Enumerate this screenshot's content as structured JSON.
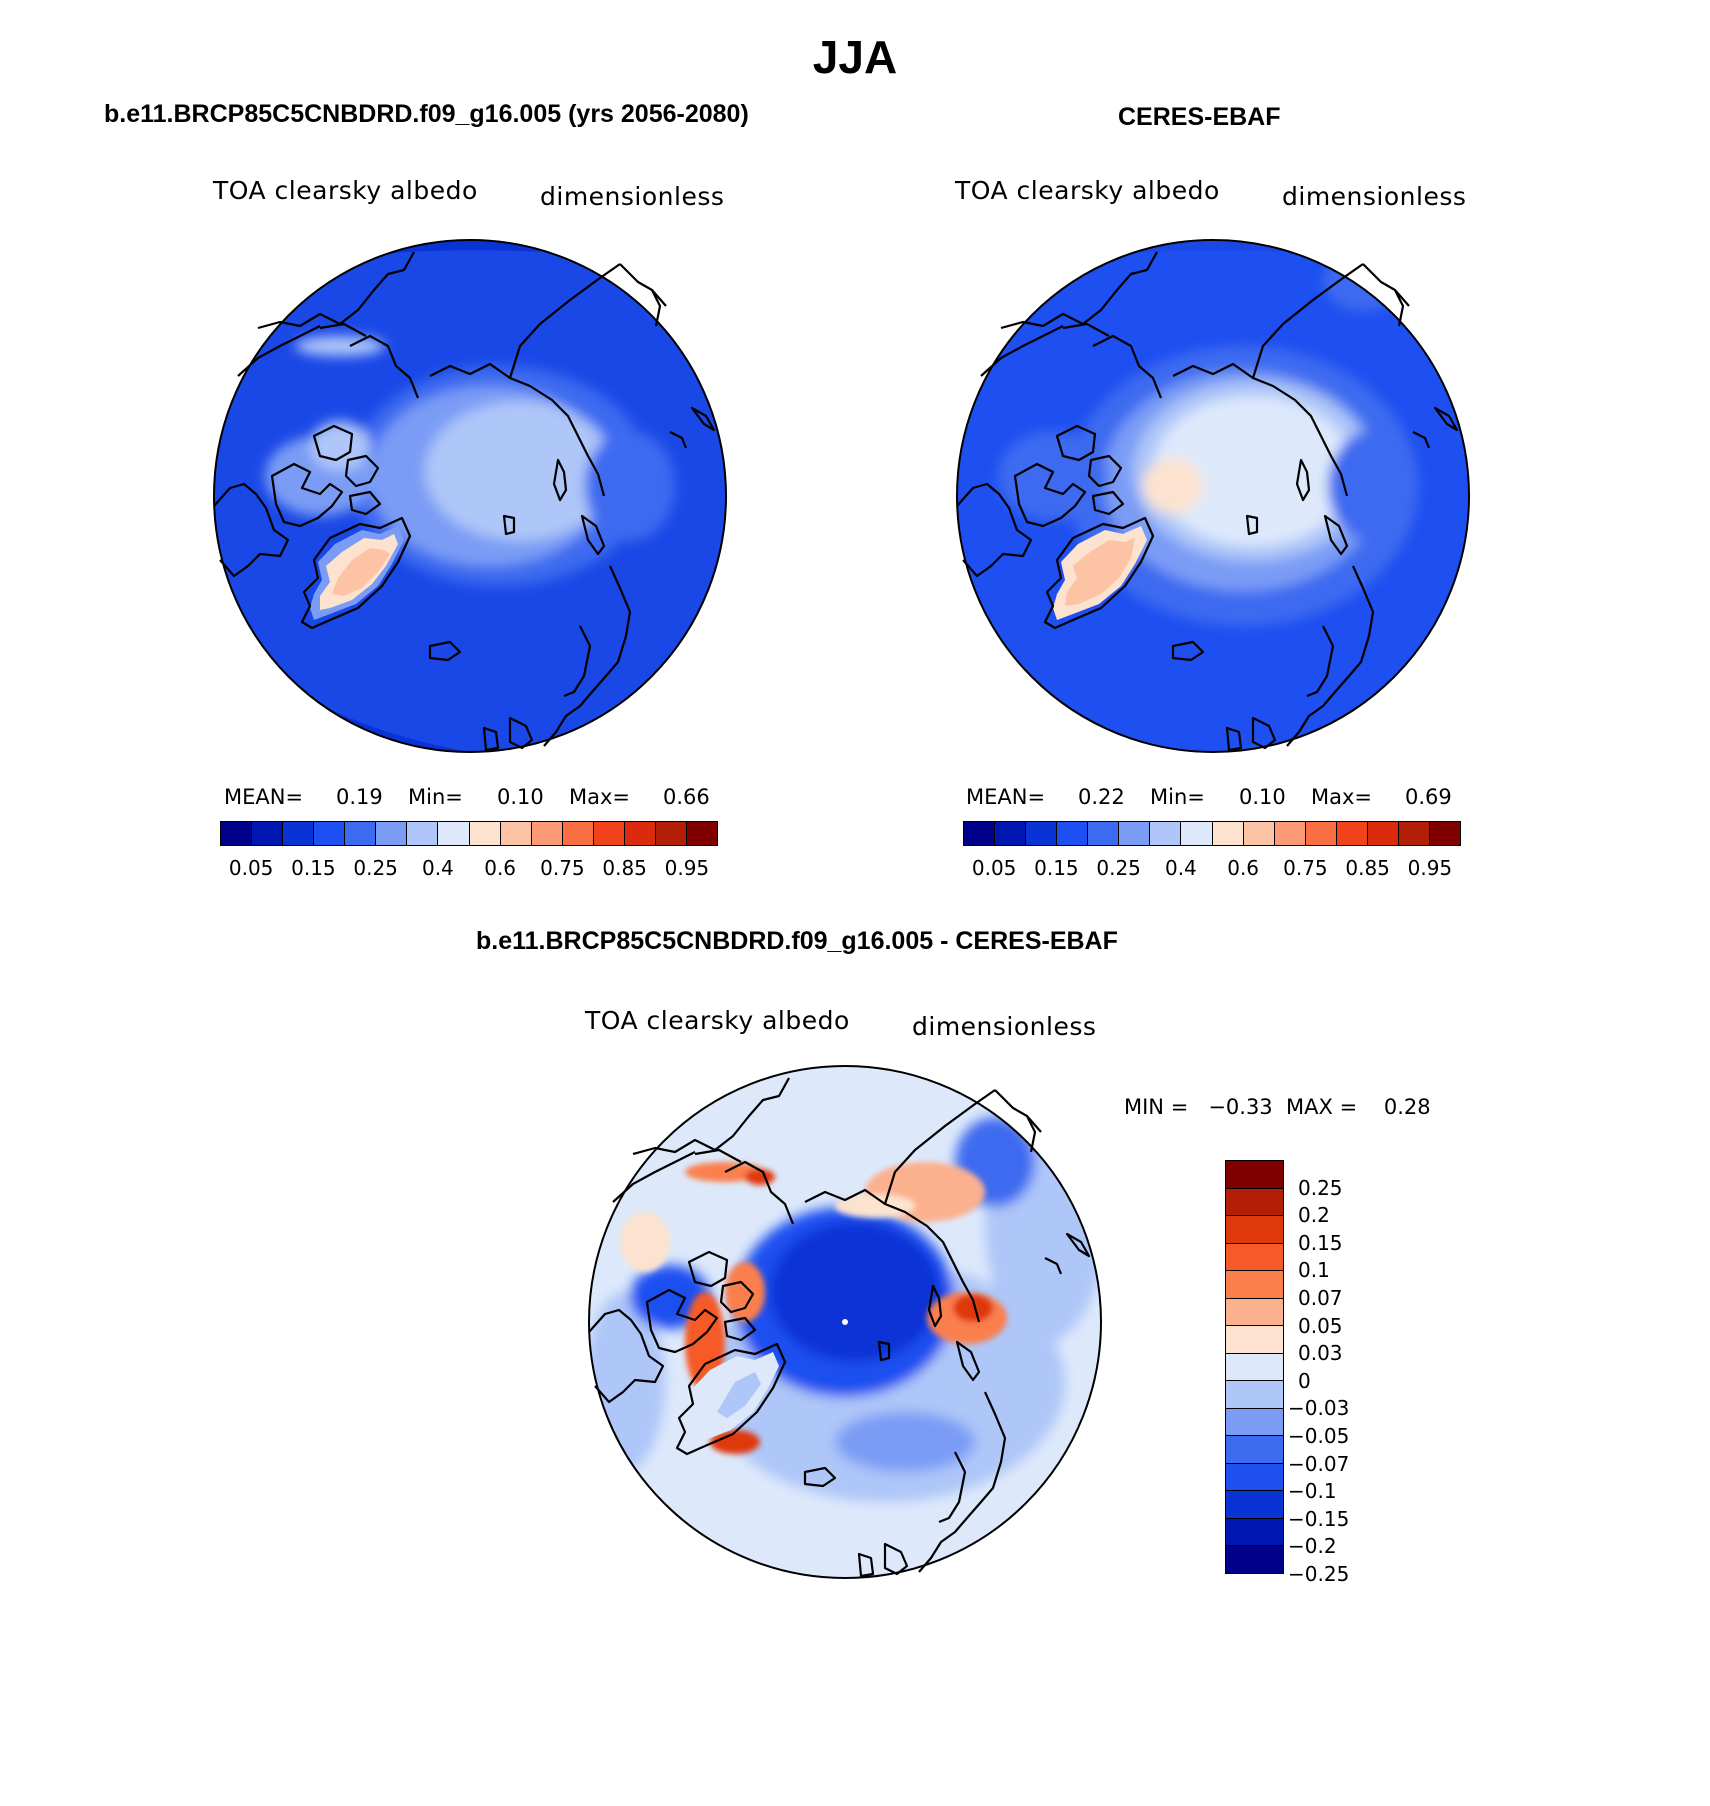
{
  "figure": {
    "title": "JJA"
  },
  "panels": {
    "model": {
      "title": "b.e11.BRCP85C5CNBDRD.f09_g16.005 (yrs 2056-2080)",
      "variable": "TOA clearsky albedo",
      "units": "dimensionless",
      "stats": {
        "mean_label": "MEAN=",
        "mean": "0.19",
        "min_label": "Min=",
        "min": "0.10",
        "max_label": "Max=",
        "max": "0.66"
      }
    },
    "obs": {
      "title": "CERES-EBAF",
      "variable": "TOA clearsky albedo",
      "units": "dimensionless",
      "stats": {
        "mean_label": "MEAN=",
        "mean": "0.22",
        "min_label": "Min=",
        "min": "0.10",
        "max_label": "Max=",
        "max": "0.69"
      }
    },
    "diff": {
      "title": "b.e11.BRCP85C5CNBDRD.f09_g16.005 - CERES-EBAF",
      "variable": "TOA clearsky albedo",
      "units": "dimensionless",
      "range": "MIN =   −0.33  MAX =    0.28"
    }
  },
  "colorbars": {
    "abs": {
      "colors": [
        "#00008b",
        "#0016b0",
        "#0a33d6",
        "#1e4ff0",
        "#3d6bf0",
        "#7a9cf5",
        "#aec6f8",
        "#dde9fb",
        "#fde3cf",
        "#fcc3a4",
        "#fb9a74",
        "#f96e43",
        "#f2421c",
        "#db2a0c",
        "#b31f06",
        "#800000"
      ],
      "ticks": [
        "0.05",
        "0.15",
        "0.25",
        "0.4",
        "0.6",
        "0.75",
        "0.85",
        "0.95"
      ]
    },
    "diff": {
      "colors": [
        "#800000",
        "#b31f06",
        "#e0380d",
        "#f65a28",
        "#fa7f4d",
        "#fbb08e",
        "#fde3cf",
        "#dde9fb",
        "#aec6f8",
        "#7a9cf5",
        "#3d6bf0",
        "#1e4ff0",
        "#0a33d6",
        "#0016b0",
        "#00008b"
      ],
      "ticks": [
        "0.25",
        "0.2",
        "0.15",
        "0.1",
        "0.07",
        "0.05",
        "0.03",
        "0",
        "−0.03",
        "−0.05",
        "−0.07",
        "−0.1",
        "−0.15",
        "−0.2",
        "−0.25"
      ]
    }
  }
}
